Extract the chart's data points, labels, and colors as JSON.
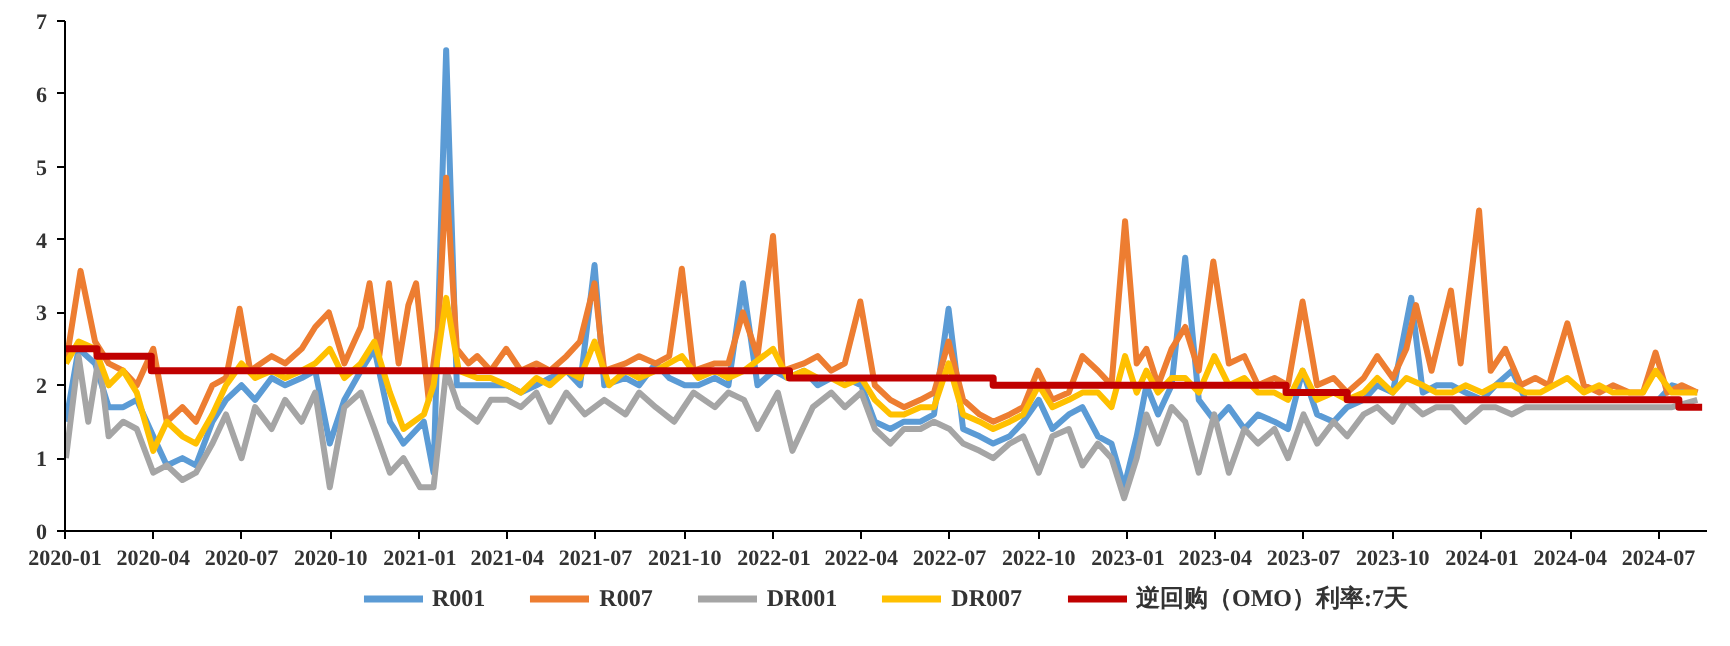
{
  "chart_data": {
    "type": "line",
    "xlim": [
      "2020-01-01",
      "2024-08-20"
    ],
    "ylim": [
      0,
      7
    ],
    "yticks": [
      0,
      1,
      2,
      3,
      4,
      5,
      6,
      7
    ],
    "xticks": [
      "2020-01",
      "2020-04",
      "2020-07",
      "2020-10",
      "2021-01",
      "2021-04",
      "2021-07",
      "2021-10",
      "2022-01",
      "2022-04",
      "2022-07",
      "2022-10",
      "2023-01",
      "2023-04",
      "2023-07",
      "2023-10",
      "2024-01",
      "2024-04",
      "2024-07"
    ],
    "grid": false,
    "legend": "bottom",
    "line_style": "solid",
    "marker": "none",
    "series": [
      {
        "name": "R001",
        "color": "#5b9bd5",
        "x": [
          "2020-01-02",
          "2020-01-15",
          "2020-02-01",
          "2020-02-15",
          "2020-03-01",
          "2020-03-15",
          "2020-04-01",
          "2020-04-15",
          "2020-05-01",
          "2020-05-15",
          "2020-06-01",
          "2020-06-15",
          "2020-07-01",
          "2020-07-15",
          "2020-08-01",
          "2020-08-15",
          "2020-09-01",
          "2020-09-15",
          "2020-09-30",
          "2020-10-15",
          "2020-11-01",
          "2020-11-15",
          "2020-12-01",
          "2020-12-15",
          "2021-01-05",
          "2021-01-15",
          "2021-01-28",
          "2021-02-08",
          "2021-02-20",
          "2021-03-15",
          "2021-04-01",
          "2021-04-15",
          "2021-05-01",
          "2021-05-15",
          "2021-06-01",
          "2021-06-15",
          "2021-06-30",
          "2021-07-10",
          "2021-08-01",
          "2021-08-15",
          "2021-09-01",
          "2021-09-15",
          "2021-10-01",
          "2021-10-15",
          "2021-11-01",
          "2021-11-15",
          "2021-11-30",
          "2021-12-15",
          "2022-01-01",
          "2022-01-15",
          "2022-02-01",
          "2022-02-15",
          "2022-03-01",
          "2022-03-15",
          "2022-04-01",
          "2022-04-15",
          "2022-05-01",
          "2022-05-15",
          "2022-06-01",
          "2022-06-15",
          "2022-06-30",
          "2022-07-15",
          "2022-08-01",
          "2022-08-15",
          "2022-09-01",
          "2022-09-15",
          "2022-10-01",
          "2022-10-15",
          "2022-11-01",
          "2022-11-15",
          "2022-12-01",
          "2022-12-15",
          "2022-12-28",
          "2023-01-10",
          "2023-01-20",
          "2023-02-01",
          "2023-02-15",
          "2023-03-01",
          "2023-03-15",
          "2023-04-01",
          "2023-04-15",
          "2023-05-01",
          "2023-05-15",
          "2023-06-01",
          "2023-06-15",
          "2023-06-30",
          "2023-07-15",
          "2023-08-01",
          "2023-08-15",
          "2023-09-01",
          "2023-09-15",
          "2023-10-01",
          "2023-10-20",
          "2023-11-01",
          "2023-11-15",
          "2023-12-01",
          "2023-12-15",
          "2024-01-01",
          "2024-01-15",
          "2024-02-01",
          "2024-02-15",
          "2024-03-01",
          "2024-03-15",
          "2024-04-01",
          "2024-04-15",
          "2024-05-01",
          "2024-05-15",
          "2024-06-01",
          "2024-06-15",
          "2024-07-01",
          "2024-07-15",
          "2024-08-10"
        ],
        "values": [
          1.5,
          2.5,
          2.3,
          1.7,
          1.7,
          1.8,
          1.3,
          0.9,
          1.0,
          0.9,
          1.5,
          1.8,
          2.0,
          1.8,
          2.1,
          2.0,
          2.1,
          2.2,
          1.2,
          1.8,
          2.2,
          2.5,
          1.5,
          1.2,
          1.5,
          0.8,
          6.6,
          2.0,
          2.0,
          2.0,
          2.0,
          1.9,
          2.0,
          2.1,
          2.2,
          2.0,
          3.65,
          2.0,
          2.1,
          2.0,
          2.3,
          2.1,
          2.0,
          2.0,
          2.1,
          2.0,
          3.4,
          2.0,
          2.2,
          2.1,
          2.2,
          2.0,
          2.1,
          2.1,
          2.0,
          1.5,
          1.4,
          1.5,
          1.5,
          1.6,
          3.05,
          1.4,
          1.3,
          1.2,
          1.3,
          1.5,
          1.8,
          1.4,
          1.6,
          1.7,
          1.3,
          1.2,
          0.6,
          1.3,
          2.0,
          1.6,
          2.0,
          3.75,
          1.8,
          1.5,
          1.7,
          1.4,
          1.6,
          1.5,
          1.4,
          2.2,
          1.6,
          1.5,
          1.7,
          1.8,
          2.0,
          1.9,
          3.2,
          1.9,
          2.0,
          2.0,
          1.9,
          1.8,
          2.0,
          2.2,
          1.8,
          1.8,
          1.8,
          1.8,
          1.8,
          1.8,
          1.8,
          1.8,
          1.8,
          1.8,
          2.0,
          1.9
        ]
      },
      {
        "name": "R007",
        "color": "#ed7d31",
        "x": [
          "2020-01-02",
          "2020-01-17",
          "2020-02-01",
          "2020-02-15",
          "2020-03-01",
          "2020-03-15",
          "2020-04-01",
          "2020-04-15",
          "2020-05-01",
          "2020-05-15",
          "2020-06-01",
          "2020-06-15",
          "2020-06-29",
          "2020-07-10",
          "2020-08-01",
          "2020-08-15",
          "2020-09-01",
          "2020-09-15",
          "2020-09-29",
          "2020-10-15",
          "2020-11-01",
          "2020-11-10",
          "2020-11-20",
          "2020-11-30",
          "2020-12-10",
          "2020-12-20",
          "2020-12-28",
          "2021-01-10",
          "2021-01-20",
          "2021-01-28",
          "2021-02-08",
          "2021-02-20",
          "2021-03-01",
          "2021-03-15",
          "2021-03-31",
          "2021-04-15",
          "2021-05-01",
          "2021-05-15",
          "2021-06-01",
          "2021-06-15",
          "2021-06-30",
          "2021-07-10",
          "2021-08-01",
          "2021-08-15",
          "2021-09-01",
          "2021-09-15",
          "2021-09-28",
          "2021-10-10",
          "2021-11-01",
          "2021-11-15",
          "2021-11-30",
          "2021-12-15",
          "2021-12-31",
          "2022-01-10",
          "2022-02-01",
          "2022-02-15",
          "2022-03-01",
          "2022-03-15",
          "2022-03-31",
          "2022-04-15",
          "2022-05-01",
          "2022-05-15",
          "2022-06-01",
          "2022-06-15",
          "2022-06-30",
          "2022-07-15",
          "2022-08-01",
          "2022-08-15",
          "2022-09-01",
          "2022-09-15",
          "2022-09-30",
          "2022-10-15",
          "2022-11-01",
          "2022-11-15",
          "2022-12-01",
          "2022-12-15",
          "2022-12-29",
          "2023-01-10",
          "2023-01-20",
          "2023-02-01",
          "2023-02-15",
          "2023-03-01",
          "2023-03-15",
          "2023-03-30",
          "2023-04-15",
          "2023-05-01",
          "2023-05-15",
          "2023-06-01",
          "2023-06-15",
          "2023-06-30",
          "2023-07-15",
          "2023-08-01",
          "2023-08-15",
          "2023-09-01",
          "2023-09-15",
          "2023-10-01",
          "2023-10-15",
          "2023-10-25",
          "2023-11-10",
          "2023-11-30",
          "2023-12-10",
          "2023-12-29",
          "2024-01-10",
          "2024-01-25",
          "2024-02-10",
          "2024-02-25",
          "2024-03-10",
          "2024-03-29",
          "2024-04-15",
          "2024-05-01",
          "2024-05-15",
          "2024-06-01",
          "2024-06-15",
          "2024-06-28",
          "2024-07-10",
          "2024-07-25",
          "2024-08-10"
        ],
        "values": [
          2.3,
          3.57,
          2.6,
          2.3,
          2.2,
          2.0,
          2.5,
          1.5,
          1.7,
          1.5,
          2.0,
          2.1,
          3.05,
          2.2,
          2.4,
          2.3,
          2.5,
          2.8,
          3.0,
          2.3,
          2.8,
          3.4,
          2.4,
          3.4,
          2.3,
          3.1,
          3.4,
          1.8,
          2.8,
          4.85,
          2.5,
          2.3,
          2.4,
          2.2,
          2.5,
          2.2,
          2.3,
          2.2,
          2.4,
          2.6,
          3.4,
          2.2,
          2.3,
          2.4,
          2.3,
          2.4,
          3.6,
          2.2,
          2.3,
          2.3,
          3.0,
          2.4,
          4.05,
          2.2,
          2.3,
          2.4,
          2.2,
          2.3,
          3.15,
          2.0,
          1.8,
          1.7,
          1.8,
          1.9,
          2.6,
          1.8,
          1.6,
          1.5,
          1.6,
          1.7,
          2.2,
          1.8,
          1.9,
          2.4,
          2.2,
          2.0,
          4.25,
          2.3,
          2.5,
          2.0,
          2.5,
          2.8,
          2.2,
          3.7,
          2.3,
          2.4,
          2.0,
          2.1,
          2.0,
          3.15,
          2.0,
          2.1,
          1.9,
          2.1,
          2.4,
          2.1,
          2.5,
          3.1,
          2.2,
          3.3,
          2.3,
          4.4,
          2.2,
          2.5,
          2.0,
          2.1,
          2.0,
          2.85,
          2.0,
          1.9,
          2.0,
          1.9,
          1.9,
          2.45,
          1.9,
          2.0,
          1.9
        ]
      },
      {
        "name": "DR001",
        "color": "#a5a5a5",
        "x": [
          "2020-01-02",
          "2020-01-15",
          "2020-01-25",
          "2020-02-05",
          "2020-02-15",
          "2020-03-01",
          "2020-03-15",
          "2020-04-01",
          "2020-04-15",
          "2020-05-01",
          "2020-05-15",
          "2020-06-01",
          "2020-06-15",
          "2020-07-01",
          "2020-07-15",
          "2020-08-01",
          "2020-08-15",
          "2020-09-01",
          "2020-09-15",
          "2020-09-30",
          "2020-10-15",
          "2020-11-01",
          "2020-11-15",
          "2020-12-01",
          "2020-12-15",
          "2021-01-01",
          "2021-01-15",
          "2021-01-28",
          "2021-02-10",
          "2021-03-01",
          "2021-03-15",
          "2021-04-01",
          "2021-04-15",
          "2021-05-01",
          "2021-05-15",
          "2021-06-01",
          "2021-06-20",
          "2021-07-10",
          "2021-08-01",
          "2021-08-15",
          "2021-09-01",
          "2021-09-20",
          "2021-10-10",
          "2021-11-01",
          "2021-11-15",
          "2021-12-01",
          "2021-12-15",
          "2022-01-05",
          "2022-01-20",
          "2022-02-10",
          "2022-03-01",
          "2022-03-15",
          "2022-04-01",
          "2022-04-15",
          "2022-05-01",
          "2022-05-15",
          "2022-06-01",
          "2022-06-15",
          "2022-07-01",
          "2022-07-15",
          "2022-08-01",
          "2022-08-15",
          "2022-09-01",
          "2022-09-15",
          "2022-10-01",
          "2022-10-15",
          "2022-11-01",
          "2022-11-15",
          "2022-12-01",
          "2022-12-15",
          "2022-12-28",
          "2023-01-10",
          "2023-01-20",
          "2023-02-01",
          "2023-02-15",
          "2023-03-01",
          "2023-03-15",
          "2023-03-31",
          "2023-04-15",
          "2023-05-01",
          "2023-05-15",
          "2023-06-01",
          "2023-06-15",
          "2023-07-01",
          "2023-07-15",
          "2023-08-01",
          "2023-08-15",
          "2023-09-01",
          "2023-09-15",
          "2023-10-01",
          "2023-10-15",
          "2023-11-01",
          "2023-11-15",
          "2023-12-01",
          "2023-12-15",
          "2024-01-01",
          "2024-01-15",
          "2024-02-01",
          "2024-02-15",
          "2024-03-01",
          "2024-03-15",
          "2024-04-01",
          "2024-04-15",
          "2024-05-01",
          "2024-05-15",
          "2024-06-01",
          "2024-06-15",
          "2024-07-01",
          "2024-07-15",
          "2024-08-10"
        ],
        "values": [
          1.0,
          2.4,
          1.5,
          2.4,
          1.3,
          1.5,
          1.4,
          0.8,
          0.9,
          0.7,
          0.8,
          1.2,
          1.6,
          1.0,
          1.7,
          1.4,
          1.8,
          1.5,
          1.9,
          0.6,
          1.7,
          1.9,
          1.4,
          0.8,
          1.0,
          0.6,
          0.6,
          2.2,
          1.7,
          1.5,
          1.8,
          1.8,
          1.7,
          1.9,
          1.5,
          1.9,
          1.6,
          1.8,
          1.6,
          1.9,
          1.7,
          1.5,
          1.9,
          1.7,
          1.9,
          1.8,
          1.4,
          1.9,
          1.1,
          1.7,
          1.9,
          1.7,
          1.9,
          1.4,
          1.2,
          1.4,
          1.4,
          1.5,
          1.4,
          1.2,
          1.1,
          1.0,
          1.2,
          1.3,
          0.8,
          1.3,
          1.4,
          0.9,
          1.2,
          1.0,
          0.45,
          1.0,
          1.6,
          1.2,
          1.7,
          1.5,
          0.8,
          1.6,
          0.8,
          1.4,
          1.2,
          1.4,
          1.0,
          1.6,
          1.2,
          1.5,
          1.3,
          1.6,
          1.7,
          1.5,
          1.8,
          1.6,
          1.7,
          1.7,
          1.5,
          1.7,
          1.7,
          1.6,
          1.7,
          1.7,
          1.7,
          1.7,
          1.7,
          1.7,
          1.7,
          1.7,
          1.7,
          1.7,
          1.7,
          1.8
        ]
      },
      {
        "name": "DR007",
        "color": "#ffc000",
        "x": [
          "2020-01-02",
          "2020-01-15",
          "2020-02-01",
          "2020-02-15",
          "2020-03-01",
          "2020-03-15",
          "2020-04-01",
          "2020-04-15",
          "2020-05-01",
          "2020-05-15",
          "2020-06-01",
          "2020-06-15",
          "2020-07-01",
          "2020-07-15",
          "2020-08-01",
          "2020-08-15",
          "2020-09-01",
          "2020-09-15",
          "2020-09-30",
          "2020-10-15",
          "2020-11-01",
          "2020-11-15",
          "2020-12-01",
          "2020-12-15",
          "2021-01-05",
          "2021-01-15",
          "2021-01-28",
          "2021-02-10",
          "2021-03-01",
          "2021-03-15",
          "2021-04-01",
          "2021-04-15",
          "2021-05-01",
          "2021-05-15",
          "2021-06-01",
          "2021-06-15",
          "2021-06-30",
          "2021-07-15",
          "2021-08-01",
          "2021-08-15",
          "2021-09-01",
          "2021-09-28",
          "2021-10-15",
          "2021-11-01",
          "2021-11-15",
          "2021-12-01",
          "2021-12-31",
          "2022-01-15",
          "2022-02-01",
          "2022-02-15",
          "2022-03-01",
          "2022-03-15",
          "2022-04-01",
          "2022-04-15",
          "2022-05-01",
          "2022-05-15",
          "2022-06-01",
          "2022-06-15",
          "2022-06-30",
          "2022-07-15",
          "2022-08-01",
          "2022-08-15",
          "2022-09-01",
          "2022-09-15",
          "2022-10-01",
          "2022-10-15",
          "2022-11-01",
          "2022-11-15",
          "2022-12-01",
          "2022-12-15",
          "2022-12-29",
          "2023-01-10",
          "2023-01-20",
          "2023-02-01",
          "2023-02-15",
          "2023-03-01",
          "2023-03-15",
          "2023-03-31",
          "2023-04-15",
          "2023-05-01",
          "2023-05-15",
          "2023-06-01",
          "2023-06-15",
          "2023-06-30",
          "2023-07-15",
          "2023-08-01",
          "2023-08-15",
          "2023-09-01",
          "2023-09-15",
          "2023-10-01",
          "2023-10-15",
          "2023-11-01",
          "2023-11-15",
          "2023-12-01",
          "2023-12-15",
          "2024-01-01",
          "2024-01-15",
          "2024-02-01",
          "2024-02-15",
          "2024-03-01",
          "2024-03-29",
          "2024-04-15",
          "2024-05-01",
          "2024-05-15",
          "2024-06-01",
          "2024-06-15",
          "2024-06-28",
          "2024-07-15",
          "2024-08-10"
        ],
        "values": [
          2.3,
          2.6,
          2.5,
          2.0,
          2.2,
          1.9,
          1.1,
          1.5,
          1.3,
          1.2,
          1.6,
          2.0,
          2.3,
          2.1,
          2.2,
          2.1,
          2.2,
          2.3,
          2.5,
          2.1,
          2.3,
          2.6,
          1.9,
          1.4,
          1.6,
          2.0,
          3.2,
          2.2,
          2.1,
          2.1,
          2.0,
          1.9,
          2.1,
          2.0,
          2.2,
          2.1,
          2.6,
          2.0,
          2.2,
          2.1,
          2.2,
          2.4,
          2.1,
          2.2,
          2.1,
          2.2,
          2.5,
          2.1,
          2.2,
          2.1,
          2.1,
          2.0,
          2.1,
          1.8,
          1.6,
          1.6,
          1.7,
          1.7,
          2.3,
          1.6,
          1.5,
          1.4,
          1.5,
          1.6,
          2.0,
          1.7,
          1.8,
          1.9,
          1.9,
          1.7,
          2.4,
          1.9,
          2.2,
          1.9,
          2.1,
          2.1,
          1.9,
          2.4,
          2.0,
          2.1,
          1.9,
          1.9,
          1.8,
          2.2,
          1.8,
          1.9,
          1.8,
          1.9,
          2.1,
          1.9,
          2.1,
          2.0,
          1.9,
          1.9,
          2.0,
          1.9,
          2.0,
          2.0,
          1.9,
          1.9,
          2.1,
          1.9,
          2.0,
          1.9,
          1.9,
          1.9,
          2.2,
          1.9,
          1.9
        ]
      },
      {
        "name": "逆回购（OMO）利率:7天",
        "color": "#c00000",
        "type": "step",
        "x": [
          "2020-01-01",
          "2020-02-03",
          "2020-03-30",
          "2022-01-17",
          "2022-08-15",
          "2023-06-13",
          "2023-08-15",
          "2024-07-22",
          "2024-08-15"
        ],
        "values": [
          2.5,
          2.4,
          2.2,
          2.1,
          2.0,
          1.9,
          1.8,
          1.7,
          1.7
        ]
      }
    ]
  }
}
